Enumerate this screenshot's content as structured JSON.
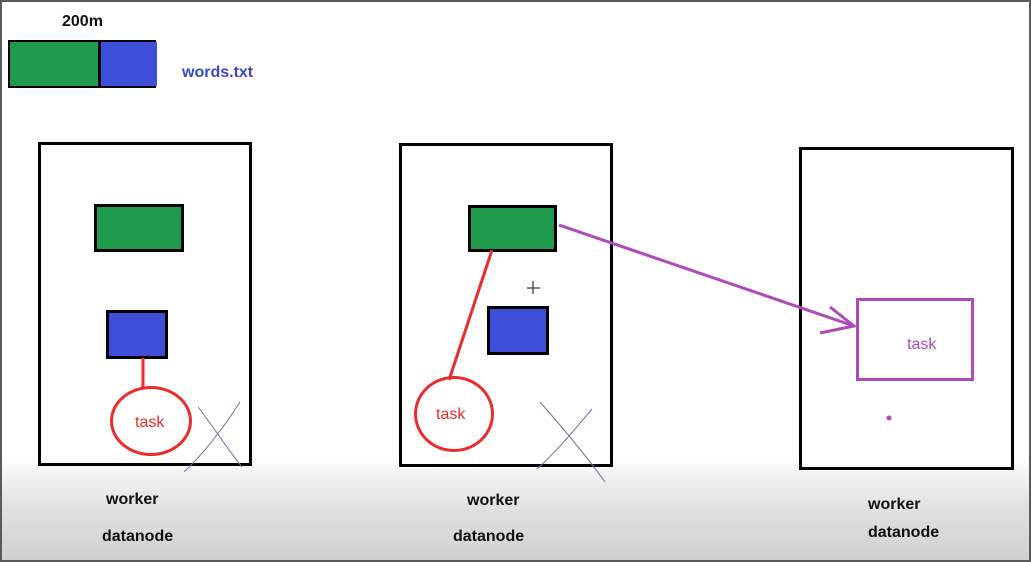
{
  "colors": {
    "hdfs_block_green": "#1e9a4d",
    "hdfs_block_blue": "#3d4ed8",
    "task_red": "#ee2b2b",
    "task_purple": "#b04ab8",
    "outline": "#000000",
    "filename_blue": "#3b47c9"
  },
  "file": {
    "size_label": "200m",
    "name": "words.txt"
  },
  "nodes": [
    {
      "worker_label": "worker",
      "datanode_label": "datanode",
      "task_label": "task"
    },
    {
      "worker_label": "worker",
      "datanode_label": "datanode",
      "task_label": "task"
    },
    {
      "worker_label": "worker",
      "datanode_label": "datanode",
      "task_label": "task"
    }
  ],
  "icons": {
    "cursor": "crosshair-cursor-icon",
    "cross_marks": "x-mark-icon"
  }
}
